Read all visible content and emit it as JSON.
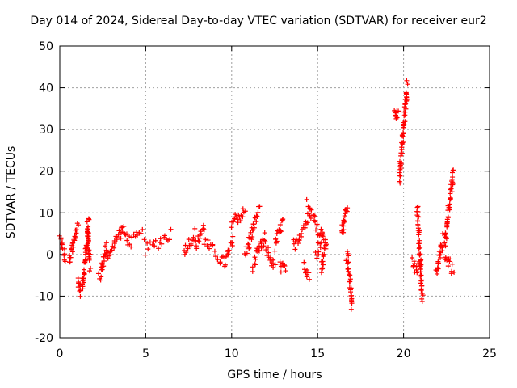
{
  "chart_data": {
    "type": "scatter",
    "title": "Day 014 of 2024, Sidereal Day-to-day VTEC variation (SDTVAR) for receiver eur2",
    "xlabel": "GPS time / hours",
    "ylabel": "SDTVAR / TECUs",
    "xlim": [
      0,
      25
    ],
    "ylim": [
      -20,
      50
    ],
    "xticks": [
      0,
      5,
      10,
      15,
      20,
      25
    ],
    "yticks": [
      -20,
      -10,
      0,
      10,
      20,
      30,
      40,
      50
    ],
    "grid": true,
    "marker": "+",
    "color": "#ff0000",
    "series": [
      {
        "name": "eur2",
        "segments": [
          {
            "x": [
              0.0,
              0.33
            ],
            "y": [
              4,
              -1
            ]
          },
          {
            "x": [
              0.55,
              1.05
            ],
            "y": [
              -2,
              7
            ]
          },
          {
            "x": [
              1.05,
              1.2
            ],
            "y": [
              -6,
              -9
            ]
          },
          {
            "x": [
              1.3,
              1.7
            ],
            "y": [
              -8,
              8
            ]
          },
          {
            "x": [
              1.6,
              1.75
            ],
            "y": [
              7,
              -3
            ]
          },
          {
            "x": [
              2.3,
              2.7
            ],
            "y": [
              -6,
              2
            ]
          },
          {
            "x": [
              2.7,
              3.6
            ],
            "y": [
              -1,
              6
            ]
          },
          {
            "x": [
              3.6,
              4.1
            ],
            "y": [
              6,
              3
            ]
          },
          {
            "x": [
              4.1,
              4.9
            ],
            "y": [
              3,
              5
            ]
          },
          {
            "x": [
              5.0,
              6.5
            ],
            "y": [
              1,
              5
            ]
          },
          {
            "x": [
              7.2,
              7.9
            ],
            "y": [
              1,
              5
            ]
          },
          {
            "x": [
              7.9,
              8.4
            ],
            "y": [
              2,
              7
            ]
          },
          {
            "x": [
              8.4,
              9.6
            ],
            "y": [
              3,
              -2
            ]
          },
          {
            "x": [
              9.6,
              10.1
            ],
            "y": [
              -2,
              3
            ]
          },
          {
            "x": [
              10.0,
              10.4
            ],
            "y": [
              8,
              9
            ]
          },
          {
            "x": [
              10.3,
              10.8
            ],
            "y": [
              9,
              10
            ]
          },
          {
            "x": [
              10.8,
              11.6
            ],
            "y": [
              0,
              11
            ]
          },
          {
            "x": [
              11.2,
              11.9
            ],
            "y": [
              -3,
              4
            ]
          },
          {
            "x": [
              11.9,
              12.5
            ],
            "y": [
              2,
              -3
            ]
          },
          {
            "x": [
              12.5,
              13.0
            ],
            "y": [
              2,
              8
            ]
          },
          {
            "x": [
              12.8,
              13.1
            ],
            "y": [
              -3,
              -4
            ]
          },
          {
            "x": [
              13.6,
              14.5
            ],
            "y": [
              2,
              9
            ]
          },
          {
            "x": [
              14.2,
              14.5
            ],
            "y": [
              -2,
              -5
            ]
          },
          {
            "x": [
              14.4,
              15.2
            ],
            "y": [
              12,
              5
            ]
          },
          {
            "x": [
              14.9,
              15.4
            ],
            "y": [
              0,
              5
            ]
          },
          {
            "x": [
              15.2,
              15.5
            ],
            "y": [
              -4,
              3
            ]
          },
          {
            "x": [
              16.4,
              16.7
            ],
            "y": [
              5,
              12
            ]
          },
          {
            "x": [
              16.7,
              17.0
            ],
            "y": [
              0,
              -12
            ]
          },
          {
            "x": [
              19.75,
              20.2
            ],
            "y": [
              18,
              41
            ]
          },
          {
            "x": [
              19.5,
              19.65
            ],
            "y": [
              34,
              33
            ]
          },
          {
            "x": [
              20.5,
              20.8
            ],
            "y": [
              -2,
              -4
            ]
          },
          {
            "x": [
              20.8,
              21.1
            ],
            "y": [
              11,
              -11
            ]
          },
          {
            "x": [
              21.9,
              22.3
            ],
            "y": [
              -5,
              4
            ]
          },
          {
            "x": [
              22.4,
              22.9
            ],
            "y": [
              3,
              20
            ]
          },
          {
            "x": [
              22.4,
              22.9
            ],
            "y": [
              0,
              -4
            ]
          }
        ]
      }
    ]
  }
}
